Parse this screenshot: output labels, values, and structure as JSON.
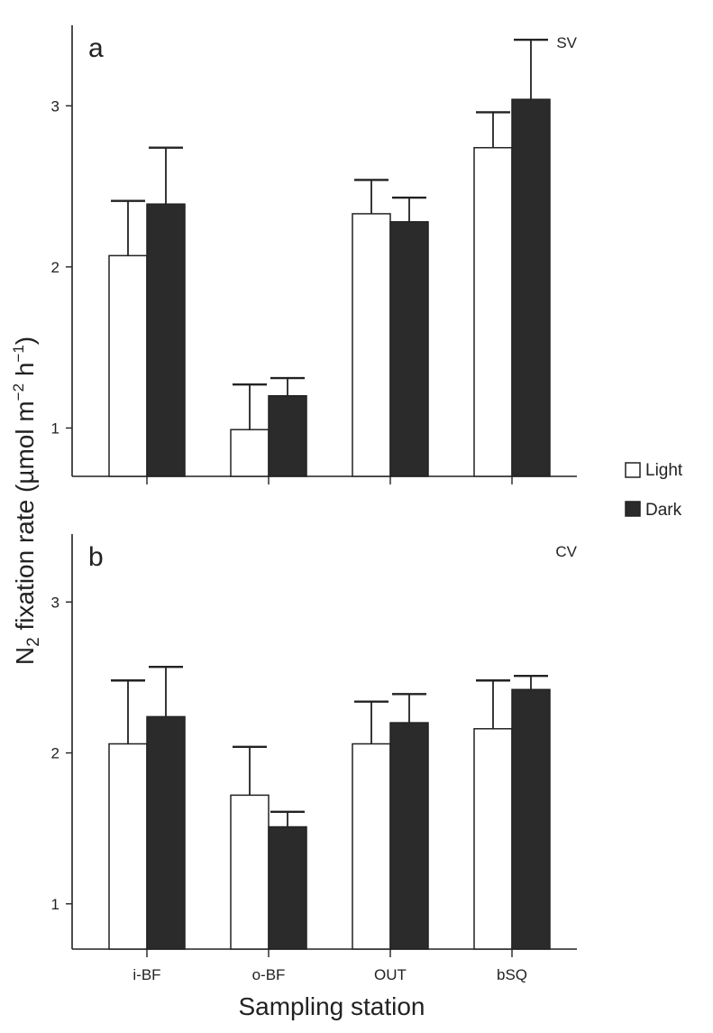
{
  "chart_data": [
    {
      "type": "bar",
      "panel": "a",
      "tag": "SV",
      "categories": [
        "i-BF",
        "o-BF",
        "OUT",
        "bSQ"
      ],
      "series": [
        {
          "name": "Light",
          "color": "#ffffff",
          "values": [
            2.07,
            0.99,
            2.33,
            2.74
          ],
          "errors": [
            0.34,
            0.28,
            0.21,
            0.22
          ]
        },
        {
          "name": "Dark",
          "color": "#2b2b2b",
          "values": [
            2.39,
            1.2,
            2.28,
            3.04
          ],
          "errors": [
            0.35,
            0.11,
            0.15,
            0.37
          ]
        }
      ],
      "yticks": [
        1,
        2,
        3
      ],
      "ylim": [
        0.7,
        3.5
      ]
    },
    {
      "type": "bar",
      "panel": "b",
      "tag": "CV",
      "categories": [
        "i-BF",
        "o-BF",
        "OUT",
        "bSQ"
      ],
      "series": [
        {
          "name": "Light",
          "color": "#ffffff",
          "values": [
            2.06,
            1.72,
            2.06,
            2.16
          ],
          "errors": [
            0.42,
            0.32,
            0.28,
            0.32
          ]
        },
        {
          "name": "Dark",
          "color": "#2b2b2b",
          "values": [
            2.24,
            1.51,
            2.2,
            2.42
          ],
          "errors": [
            0.33,
            0.1,
            0.19,
            0.09
          ]
        }
      ],
      "yticks": [
        1,
        2,
        3
      ],
      "ylim": [
        0.7,
        3.45
      ]
    }
  ],
  "axes": {
    "ylabel_main": "N",
    "ylabel_sub": "2",
    "ylabel_rest": " fixation rate (µmol m",
    "ylabel_sup1": "−2",
    "ylabel_mid": " h",
    "ylabel_sup2": "−1",
    "ylabel_end": ")",
    "xlabel": "Sampling station"
  },
  "legend": {
    "items": [
      {
        "label": "Light",
        "color": "#ffffff"
      },
      {
        "label": "Dark",
        "color": "#2b2b2b"
      }
    ]
  }
}
